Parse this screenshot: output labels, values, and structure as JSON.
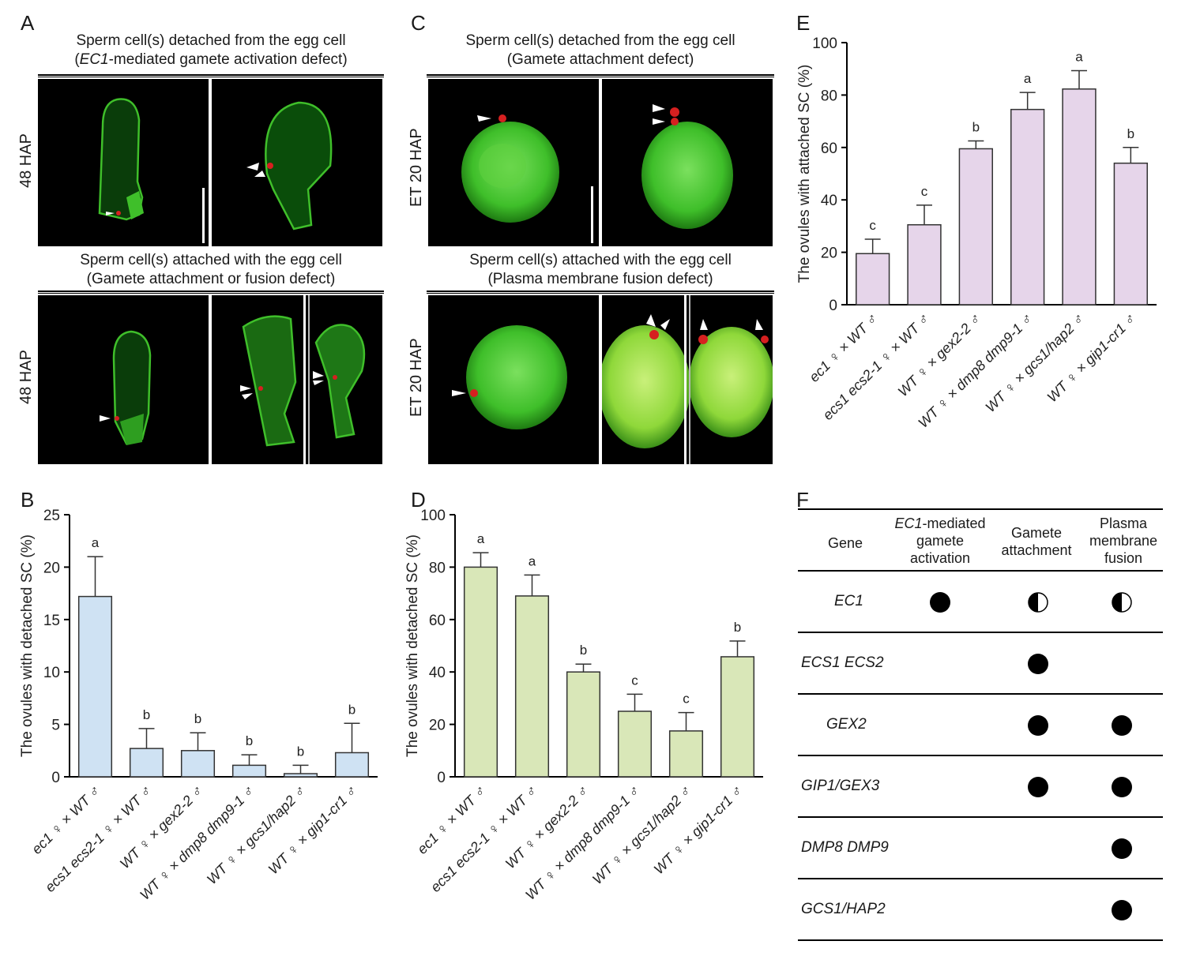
{
  "panel_labels": {
    "A": "A",
    "B": "B",
    "C": "C",
    "D": "D",
    "E": "E",
    "F": "F"
  },
  "panelA": {
    "top_title_1": "Sperm cell(s) detached from the egg cell",
    "top_title_2_italic": "EC1",
    "top_title_2_rest": "-mediated gamete activation defect)",
    "bottom_title_1": "Sperm cell(s) attached with the egg cell",
    "bottom_title_2": "(Gamete attachment or fusion defect)",
    "side_label_top": "48 HAP",
    "side_label_bottom": "48 HAP"
  },
  "panelC": {
    "top_title_1": "Sperm cell(s) detached from the egg cell",
    "top_title_2": "(Gamete attachment defect)",
    "bottom_title_1": "Sperm cell(s) attached with the egg cell",
    "bottom_title_2": "(Plasma membrane fusion defect)",
    "side_label_top": "ET  20 HAP",
    "side_label_bottom": "ET  20 HAP"
  },
  "colors": {
    "bar_B": "#cfe2f3",
    "bar_D": "#d9e7b8",
    "bar_E": "#e6d5ea",
    "green": "#3fbf2a",
    "red": "#d62020"
  },
  "chart_data": [
    {
      "id": "B",
      "type": "bar",
      "ylabel": "The ovules with detached SC (%)",
      "ylim": [
        0,
        25
      ],
      "yticks": [
        0,
        5,
        10,
        15,
        20,
        25
      ],
      "categories": [
        "ec1 ♀ × WT ♂",
        "ecs1 ecs2-1 ♀ × WT ♂",
        "WT ♀ × gex2-2 ♂",
        "WT ♀ × dmp8 dmp9-1 ♂",
        "WT ♀ × gcs1/hap2 ♂",
        "WT ♀ × gip1-cr1 ♂"
      ],
      "values": [
        17.2,
        2.7,
        2.5,
        1.1,
        0.3,
        2.3
      ],
      "errors": [
        3.8,
        1.9,
        1.7,
        1.0,
        0.8,
        2.8
      ],
      "letters": [
        "a",
        "b",
        "b",
        "b",
        "b",
        "b"
      ]
    },
    {
      "id": "D",
      "type": "bar",
      "ylabel": "The ovules with detached SC (%)",
      "ylim": [
        0,
        100
      ],
      "yticks": [
        0,
        20,
        40,
        60,
        80,
        100
      ],
      "categories": [
        "ec1 ♀ × WT ♂",
        "ecs1 ecs2-1 ♀ × WT ♂",
        "WT ♀ × gex2-2 ♂",
        "WT ♀ × dmp8 dmp9-1 ♂",
        "WT ♀ × gcs1/hap2 ♂",
        "WT ♀ × gip1-cr1 ♂"
      ],
      "values": [
        80,
        69,
        40,
        25,
        17.5,
        45.8
      ],
      "errors": [
        5.5,
        8,
        3,
        6.5,
        7,
        6
      ],
      "letters": [
        "a",
        "a",
        "b",
        "c",
        "c",
        "b"
      ]
    },
    {
      "id": "E",
      "type": "bar",
      "ylabel": "The ovules with attached SC (%)",
      "ylim": [
        0,
        100
      ],
      "yticks": [
        0,
        20,
        40,
        60,
        80,
        100
      ],
      "categories": [
        "ec1 ♀ × WT ♂",
        "ecs1 ecs2-1 ♀ × WT ♂",
        "WT ♀ × gex2-2 ♂",
        "WT ♀ × dmp8 dmp9-1 ♂",
        "WT ♀ × gcs1/hap2 ♂",
        "WT ♀ × gip1-cr1 ♂"
      ],
      "values": [
        19.5,
        30.5,
        59.5,
        74.5,
        82.3,
        54
      ],
      "errors": [
        5.5,
        7.5,
        3,
        6.5,
        7,
        6
      ],
      "letters": [
        "c",
        "c",
        "b",
        "a",
        "a",
        "b"
      ]
    }
  ],
  "tableF": {
    "headers": [
      "Gene",
      "EC1-mediated gamete activation",
      "Gamete attachment",
      "Plasma membrane fusion"
    ],
    "header_col2_italic": "EC1",
    "header_col2_line1_rest": "-mediated",
    "header_col2_line2": "gamete",
    "header_col2_line3": "activation",
    "header_col3_line1": "Gamete",
    "header_col3_line2": "attachment",
    "header_col4_line1": "Plasma",
    "header_col4_line2": "membrane",
    "header_col4_line3": "fusion",
    "rows": [
      {
        "gene": "EC1",
        "cells": [
          "full",
          "half",
          "half"
        ]
      },
      {
        "gene": "ECS1 ECS2",
        "cells": [
          "",
          "full",
          ""
        ]
      },
      {
        "gene": "GEX2",
        "cells": [
          "",
          "full",
          "full"
        ]
      },
      {
        "gene": "GIP1/GEX3",
        "cells": [
          "",
          "full",
          "full"
        ]
      },
      {
        "gene": "DMP8 DMP9",
        "cells": [
          "",
          "",
          "full"
        ]
      },
      {
        "gene": "GCS1/HAP2",
        "cells": [
          "",
          "",
          "full"
        ]
      }
    ]
  }
}
